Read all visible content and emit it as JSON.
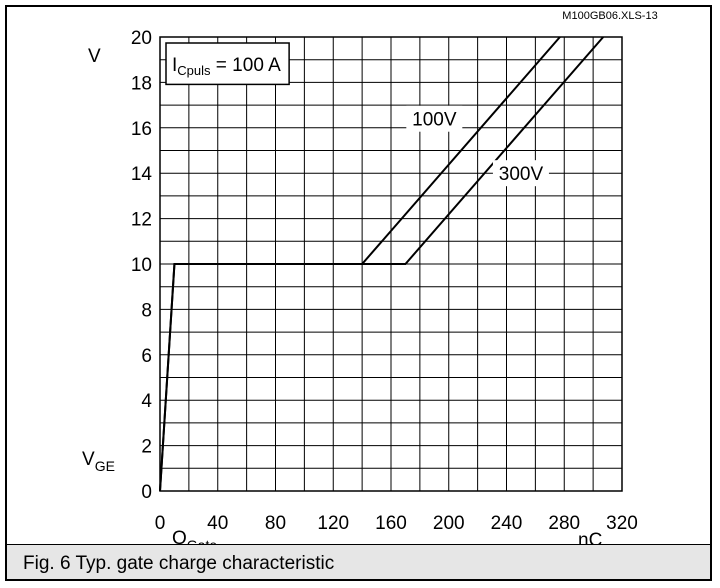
{
  "caption": "Fig. 6 Typ. gate charge characteristic",
  "chart_data": {
    "type": "line",
    "code_label": "M100GB06.XLS-13",
    "condition_box": {
      "main": "I",
      "sub": "Cpuls",
      "rest": " = 100 A"
    },
    "xlabel_main": "Q",
    "xlabel_sub": "Gate",
    "xunit": "nC",
    "ylabel_main": "V",
    "ylabel_sub": "GE",
    "yunit": "V",
    "xlim": [
      0,
      320
    ],
    "ylim": [
      0,
      20
    ],
    "xticks": [
      0,
      40,
      80,
      120,
      160,
      200,
      240,
      280,
      320
    ],
    "yticks": [
      0,
      2,
      4,
      6,
      8,
      10,
      12,
      14,
      16,
      18,
      20
    ],
    "grid": true,
    "series": [
      {
        "name": "100V",
        "x": [
          0,
          10,
          140,
          277
        ],
        "y": [
          0,
          10,
          10,
          20
        ]
      },
      {
        "name": "300V",
        "x": [
          0,
          10,
          170,
          307
        ],
        "y": [
          0,
          10,
          10,
          20
        ]
      }
    ],
    "series_labels": [
      {
        "text": "100V",
        "x": 190,
        "y": 16.4
      },
      {
        "text": "300V",
        "x": 250,
        "y": 14.0
      }
    ]
  }
}
